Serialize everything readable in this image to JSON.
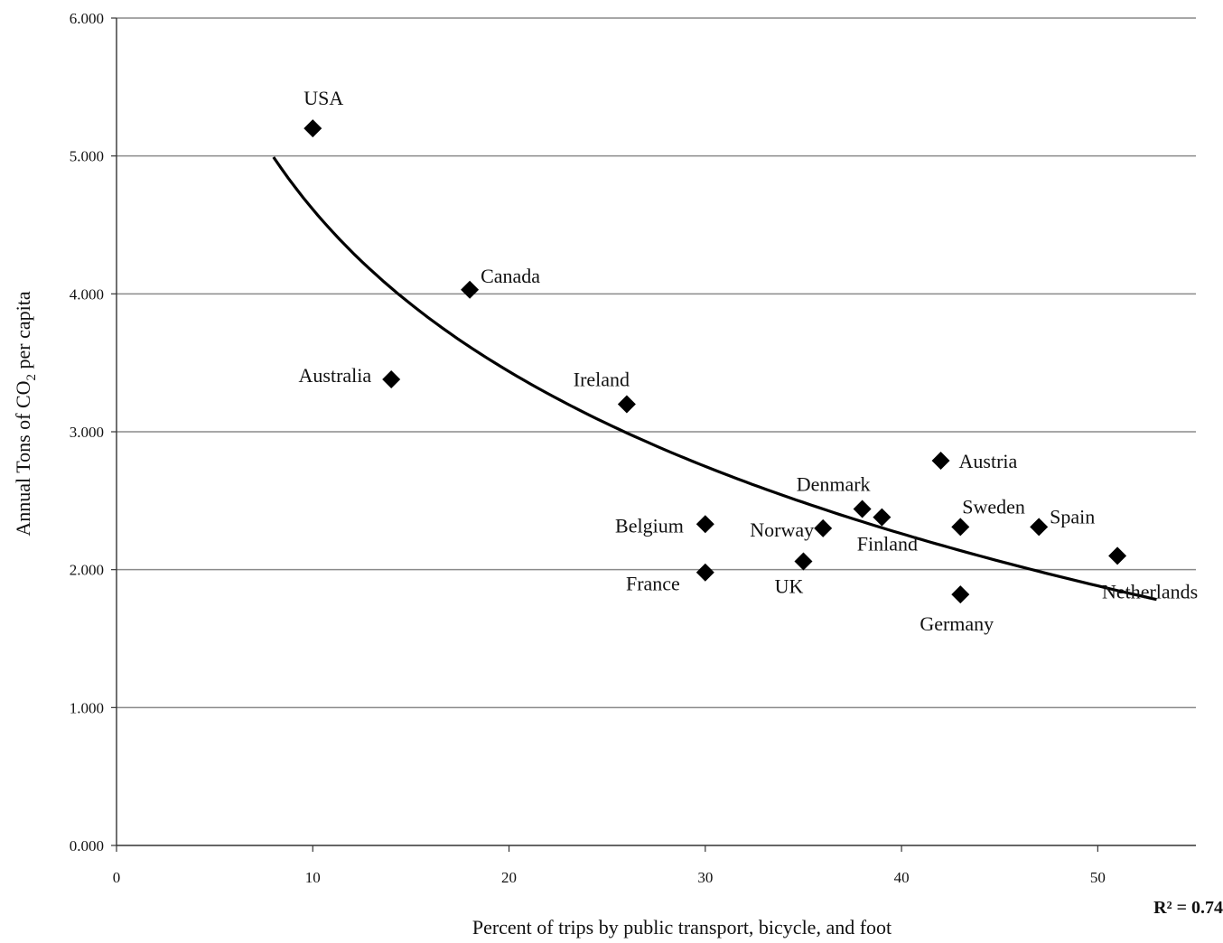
{
  "chart_data": {
    "type": "scatter",
    "xlabel": "Percent of trips by public transport, bicycle, and foot",
    "ylabel": {
      "prefix": "Annual Tons of CO",
      "subscript": "2",
      "suffix": " per capita"
    },
    "xlim": [
      0,
      55
    ],
    "ylim": [
      0,
      6
    ],
    "x_ticks": [
      {
        "value": 0,
        "label": "0"
      },
      {
        "value": 10,
        "label": "10"
      },
      {
        "value": 20,
        "label": "20"
      },
      {
        "value": 30,
        "label": "30"
      },
      {
        "value": 40,
        "label": "40"
      },
      {
        "value": 50,
        "label": "50"
      }
    ],
    "y_ticks": [
      {
        "value": 0,
        "label": "0.000"
      },
      {
        "value": 1,
        "label": "1.000"
      },
      {
        "value": 2,
        "label": "2.000"
      },
      {
        "value": 3,
        "label": "3.000"
      },
      {
        "value": 4,
        "label": "4.000"
      },
      {
        "value": 5,
        "label": "5.000"
      },
      {
        "value": 6,
        "label": "6.000"
      }
    ],
    "grid": "horizontal",
    "marker": "diamond",
    "points": [
      {
        "label": "USA",
        "x": 10,
        "y": 5.2
      },
      {
        "label": "Canada",
        "x": 18,
        "y": 4.03
      },
      {
        "label": "Australia",
        "x": 14,
        "y": 3.38
      },
      {
        "label": "Ireland",
        "x": 26,
        "y": 3.2
      },
      {
        "label": "Austria",
        "x": 42,
        "y": 2.79
      },
      {
        "label": "Denmark",
        "x": 38,
        "y": 2.44
      },
      {
        "label": "Finland",
        "x": 39,
        "y": 2.38
      },
      {
        "label": "Norway",
        "x": 36,
        "y": 2.3
      },
      {
        "label": "Sweden",
        "x": 43,
        "y": 2.31
      },
      {
        "label": "Spain",
        "x": 47,
        "y": 2.31
      },
      {
        "label": "Belgium",
        "x": 30,
        "y": 2.33
      },
      {
        "label": "France",
        "x": 30,
        "y": 1.98
      },
      {
        "label": "UK",
        "x": 35,
        "y": 2.06
      },
      {
        "label": "Germany",
        "x": 43,
        "y": 1.82
      },
      {
        "label": "Netherlands",
        "x": 51,
        "y": 2.1
      }
    ],
    "trendline": {
      "type": "logarithmic",
      "x_range": [
        8,
        53
      ],
      "r_squared_label": "R² = 0.74"
    }
  }
}
